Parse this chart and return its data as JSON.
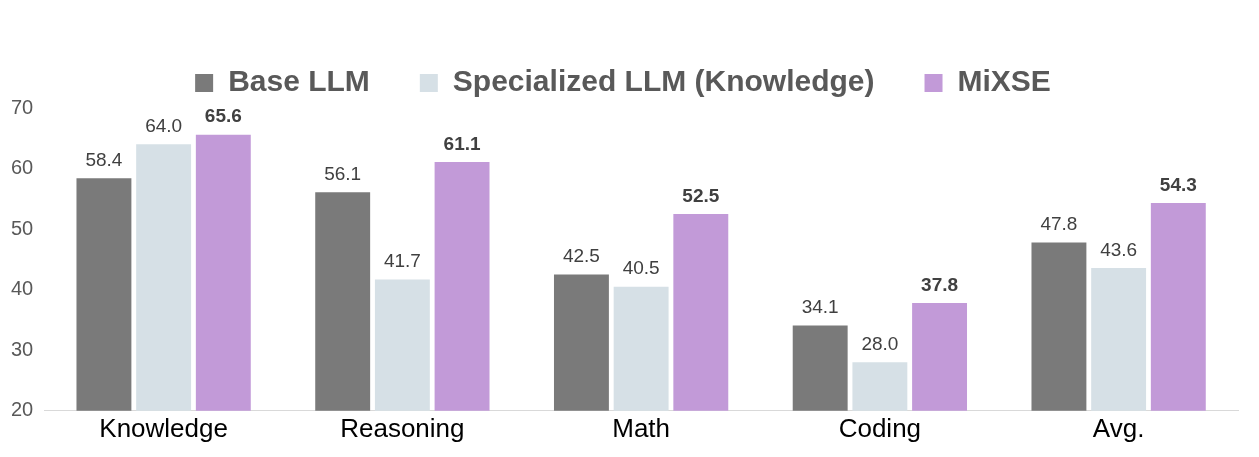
{
  "chart_data": {
    "type": "bar",
    "categories": [
      "Knowledge",
      "Reasoning",
      "Math",
      "Coding",
      "Avg."
    ],
    "series": [
      {
        "name": "Base LLM",
        "color": "#7a7a7a",
        "values": [
          58.4,
          56.1,
          42.5,
          34.1,
          47.8
        ],
        "value_labels": [
          "58.4",
          "56.1",
          "42.5",
          "34.1",
          "47.8"
        ]
      },
      {
        "name": "Specialized LLM (Knowledge)",
        "color": "#d6e0e6",
        "values": [
          64.0,
          41.7,
          40.5,
          28.0,
          43.6
        ],
        "value_labels": [
          "64.0",
          "41.7",
          "40.5",
          "28.0",
          "43.6"
        ]
      },
      {
        "name": "MiXSE",
        "color": "#c29ad8",
        "values": [
          65.6,
          61.1,
          52.5,
          37.8,
          54.3
        ],
        "value_labels": [
          "65.6",
          "61.1",
          "52.5",
          "37.8",
          "54.3"
        ]
      }
    ],
    "ylim": [
      20,
      70
    ],
    "yticks": [
      20,
      30,
      40,
      50,
      60,
      70
    ],
    "grid": false,
    "legend": "top"
  }
}
